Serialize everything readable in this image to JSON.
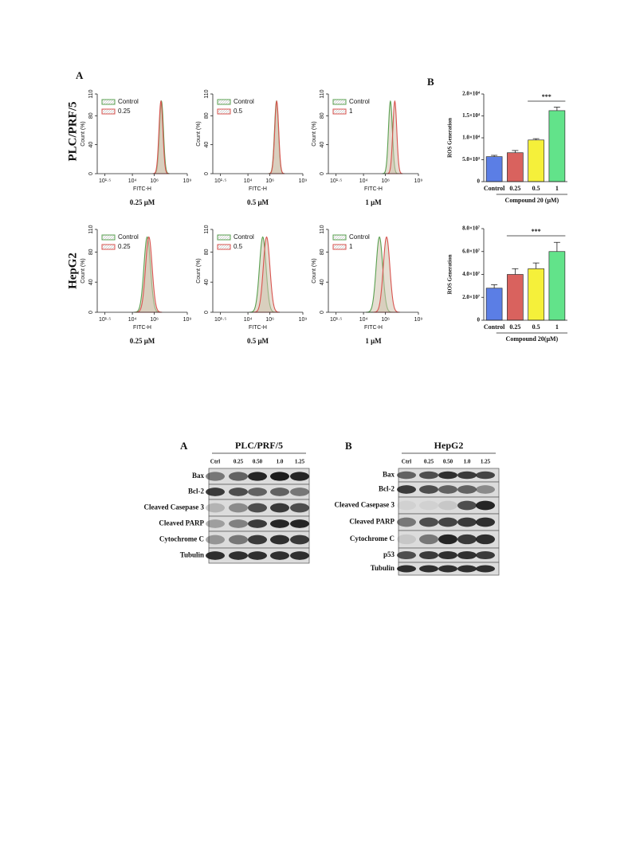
{
  "figure_1": {
    "panel_a_label": "A",
    "panel_b_label": "B",
    "flow": {
      "xlabel": "FITC-H",
      "ylabel": "Count (%)",
      "xscale": "log",
      "xlim": [
        0.8,
        9
      ],
      "ylim": [
        0,
        110
      ],
      "xticks": [
        {
          "value": 1.5,
          "label": "10¹·⁵"
        },
        {
          "value": 4,
          "label": "10⁴"
        },
        {
          "value": 6,
          "label": "10⁶"
        },
        {
          "value": 9,
          "label": "10⁹"
        }
      ],
      "yticks": [
        0,
        40,
        80,
        110
      ],
      "colors": [
        "#5aa050",
        "#d9534f"
      ],
      "rows": [
        {
          "cell_line": "PLC/PRF/5",
          "peak_sd": 0.18,
          "panels": [
            {
              "dose_label": "0.25 μM",
              "legend": [
                "Control",
                "0.25"
              ],
              "peaks": [
                6.65,
                6.6
              ],
              "heights": [
                100,
                100
              ]
            },
            {
              "dose_label": "0.5  μM",
              "legend": [
                "Control",
                "0.5"
              ],
              "peaks": [
                6.6,
                6.62
              ],
              "heights": [
                100,
                100
              ]
            },
            {
              "dose_label": "1 μM",
              "legend": [
                "Control",
                "1"
              ],
              "peaks": [
                6.45,
                6.85
              ],
              "heights": [
                100,
                100
              ]
            }
          ]
        },
        {
          "cell_line": "HepG2",
          "peak_sd": 0.3,
          "panels": [
            {
              "dose_label": "0.25 μM",
              "legend": [
                "Control",
                "0.25"
              ],
              "peaks": [
                5.35,
                5.5
              ],
              "heights": [
                100,
                100
              ]
            },
            {
              "dose_label": "0.5  μM",
              "legend": [
                "Control",
                "0.5"
              ],
              "peaks": [
                5.35,
                5.7
              ],
              "heights": [
                100,
                100
              ]
            },
            {
              "dose_label": "1 μM",
              "legend": [
                "Control",
                "1"
              ],
              "peaks": [
                5.45,
                6.1
              ],
              "heights": [
                100,
                100
              ]
            }
          ]
        }
      ]
    }
  },
  "chart_data": [
    {
      "type": "bar",
      "ylabel": "ROS Generation",
      "categories": [
        "Control",
        "0.25",
        "0.5",
        "1"
      ],
      "values": [
        5700,
        6600,
        9500,
        16200
      ],
      "errors": [
        300,
        500,
        300,
        800
      ],
      "colors": [
        "#5b7ee5",
        "#d9625e",
        "#f5f03a",
        "#62e38a"
      ],
      "ylim": [
        0,
        20000
      ],
      "yticks": [
        0,
        {
          "value": 5000,
          "label": "5.0×10³"
        },
        {
          "value": 10000,
          "label": "1.0×10⁴"
        },
        {
          "value": 15000,
          "label": "1.5×10⁴"
        },
        {
          "value": 20000,
          "label": "2.0×10⁴"
        }
      ],
      "group_label": "Compound 20 (μM)",
      "significance": "***"
    },
    {
      "type": "bar",
      "ylabel": "ROS Generation",
      "categories": [
        "Control",
        "0.25",
        "0.5",
        "1"
      ],
      "values": [
        28000000,
        40000000,
        45000000,
        60000000
      ],
      "errors": [
        3000000,
        5000000,
        5000000,
        8000000
      ],
      "colors": [
        "#5b7ee5",
        "#d9625e",
        "#f5f03a",
        "#62e38a"
      ],
      "ylim": [
        0,
        80000000
      ],
      "yticks": [
        0,
        {
          "value": 20000000,
          "label": "2.0×10⁷"
        },
        {
          "value": 40000000,
          "label": "4.0×10⁷"
        },
        {
          "value": 60000000,
          "label": "6.0×10⁷"
        },
        {
          "value": 80000000,
          "label": "8.0×10⁷"
        }
      ],
      "group_label": "Compound 20(μM)",
      "significance": "***"
    }
  ],
  "figure_2": {
    "panel_a": {
      "label": "A",
      "title": "PLC/PRF/5",
      "lanes": [
        "Ctrl",
        "0.25",
        "0.50",
        "1.0",
        "1.25"
      ],
      "rows": [
        {
          "name": "Bax",
          "bands": [
            0.5,
            0.6,
            0.9,
            0.95,
            0.9
          ]
        },
        {
          "name": "Bcl-2",
          "bands": [
            0.8,
            0.7,
            0.6,
            0.6,
            0.5
          ]
        },
        {
          "name": "Cleaved Casepase 3",
          "bands": [
            0.2,
            0.4,
            0.7,
            0.8,
            0.7
          ]
        },
        {
          "name": "Cleaved PARP",
          "bands": [
            0.3,
            0.45,
            0.8,
            0.9,
            0.9
          ]
        },
        {
          "name": "Cytochrome C",
          "bands": [
            0.35,
            0.5,
            0.8,
            0.85,
            0.8
          ]
        },
        {
          "name": "Tubulin",
          "bands": [
            0.85,
            0.85,
            0.85,
            0.85,
            0.85
          ]
        }
      ]
    },
    "panel_b": {
      "label": "B",
      "title": "HepG2",
      "lanes": [
        "Ctrl",
        "0.25",
        "0.50",
        "1.0",
        "1.25"
      ],
      "rows": [
        {
          "name": "Bax",
          "bands": [
            0.6,
            0.7,
            0.85,
            0.8,
            0.75
          ]
        },
        {
          "name": "Bcl-2",
          "bands": [
            0.8,
            0.7,
            0.6,
            0.6,
            0.4
          ]
        },
        {
          "name": "Cleaved Casepase 3",
          "bands": [
            0.05,
            0.05,
            0.1,
            0.7,
            0.9
          ]
        },
        {
          "name": "Cleaved PARP",
          "bands": [
            0.5,
            0.7,
            0.75,
            0.8,
            0.85
          ]
        },
        {
          "name": "Cytochrome C",
          "bands": [
            0.1,
            0.5,
            0.9,
            0.8,
            0.85
          ]
        },
        {
          "name": "p53",
          "bands": [
            0.7,
            0.8,
            0.85,
            0.85,
            0.8
          ]
        },
        {
          "name": "Tubulin",
          "bands": [
            0.85,
            0.85,
            0.85,
            0.85,
            0.85
          ]
        }
      ]
    }
  }
}
